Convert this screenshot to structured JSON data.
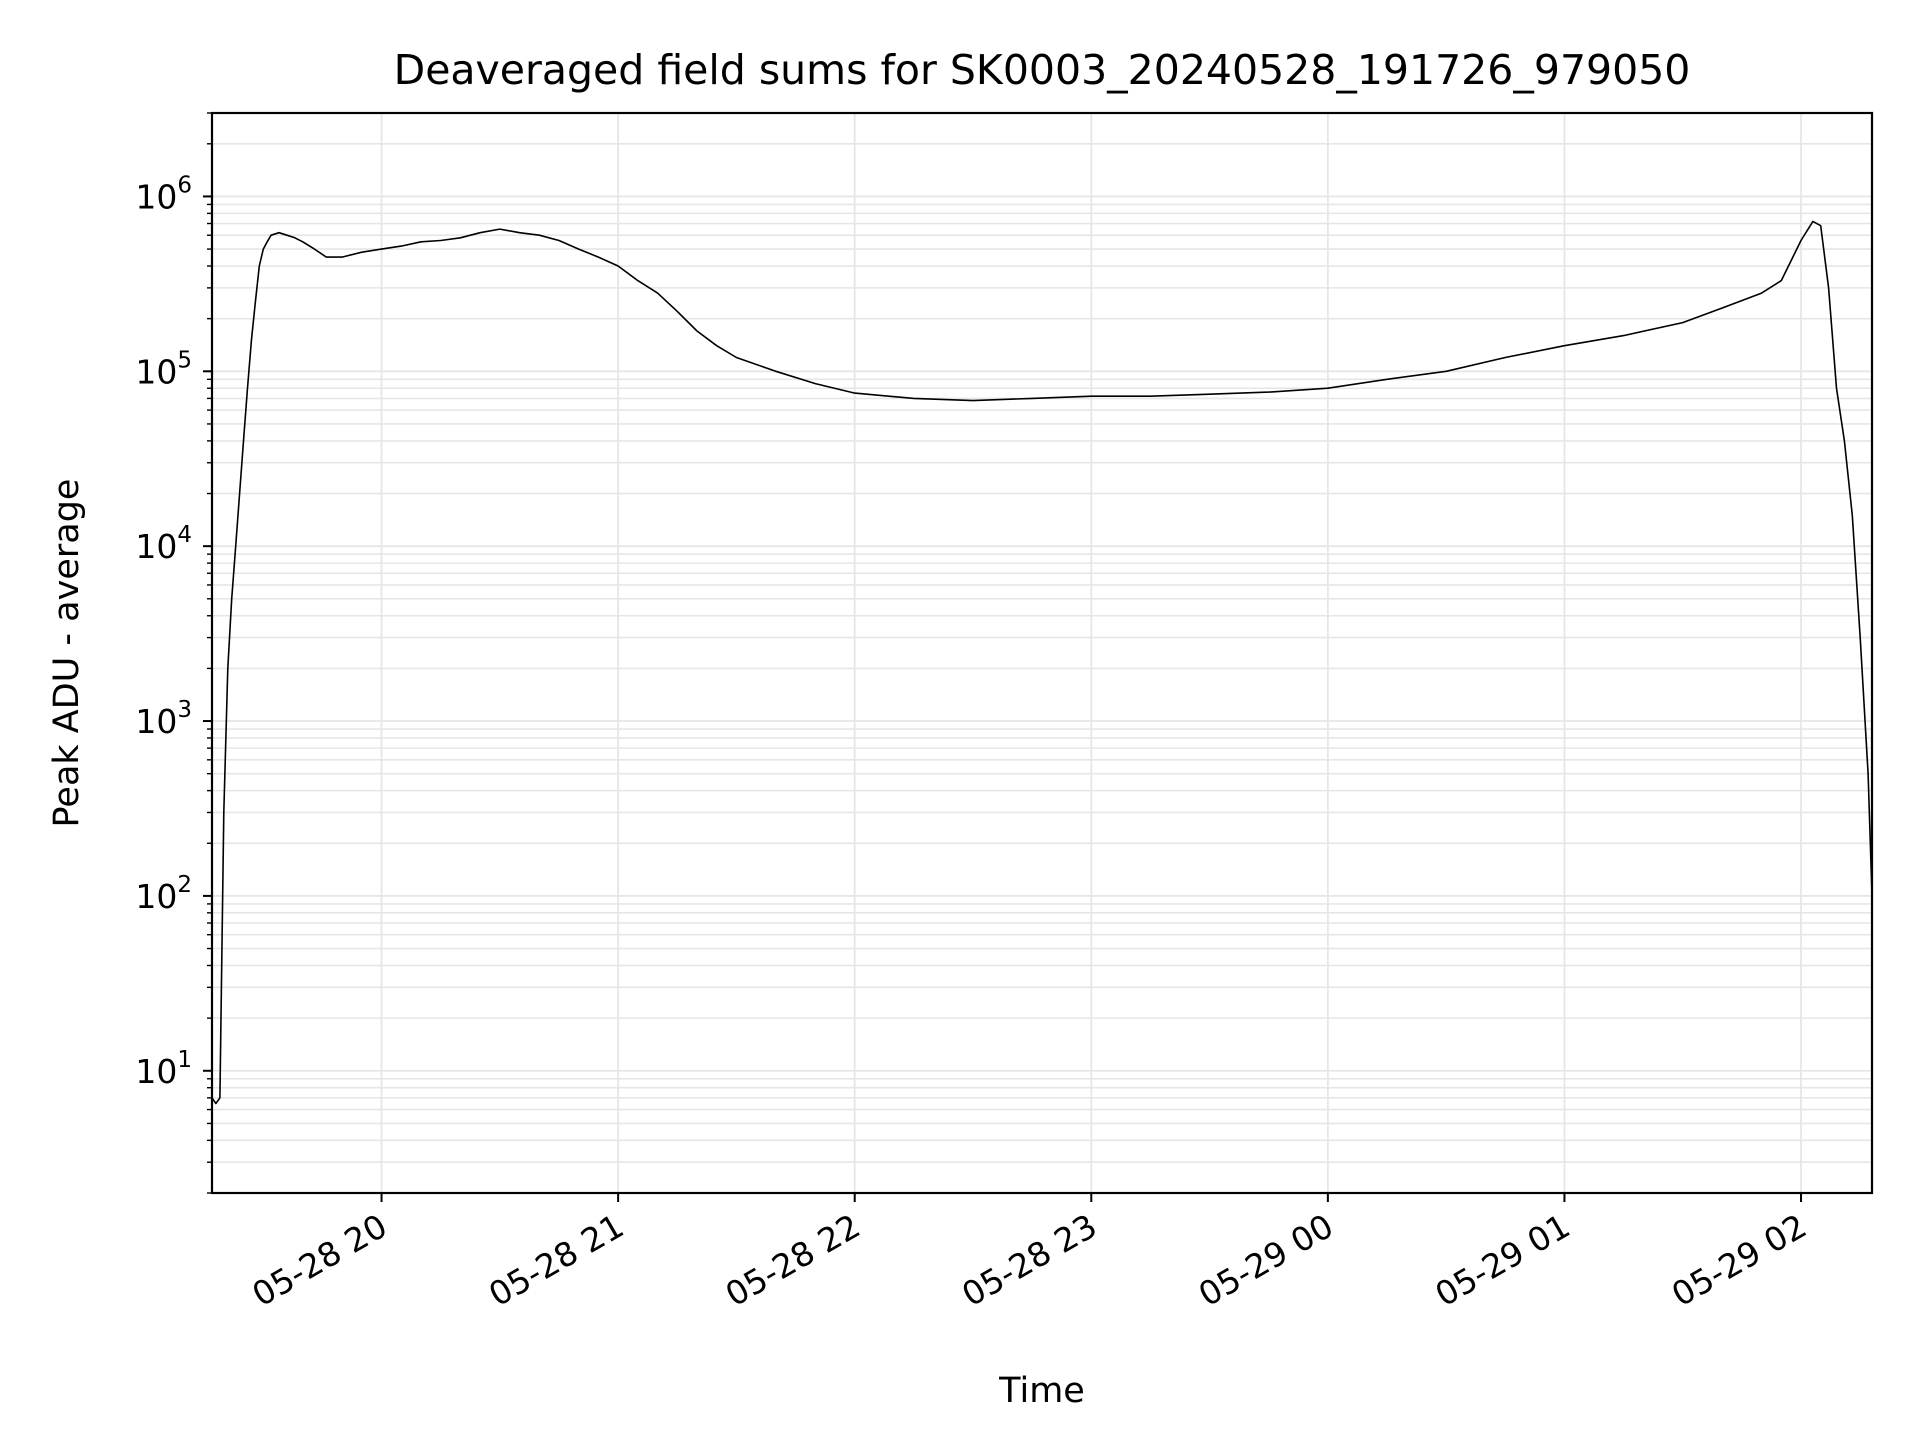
{
  "chart_data": {
    "type": "line",
    "title": "Deaveraged field sums for SK0003_20240528_191726_979050",
    "xlabel": "Time",
    "ylabel": "Peak ADU - average",
    "yscale": "log",
    "ylim": [
      2,
      3000000
    ],
    "xlim": [
      "2024-05-28 19:17",
      "2024-05-29 02:18"
    ],
    "x_ticks": [
      {
        "label": "05-28 20",
        "value": "2024-05-28 20:00"
      },
      {
        "label": "05-28 21",
        "value": "2024-05-28 21:00"
      },
      {
        "label": "05-28 22",
        "value": "2024-05-28 22:00"
      },
      {
        "label": "05-28 23",
        "value": "2024-05-28 23:00"
      },
      {
        "label": "05-29 00",
        "value": "2024-05-29 00:00"
      },
      {
        "label": "05-29 01",
        "value": "2024-05-29 01:00"
      },
      {
        "label": "05-29 02",
        "value": "2024-05-29 02:00"
      }
    ],
    "y_ticks": [
      {
        "base": "10",
        "exp": "1",
        "value": 10
      },
      {
        "base": "10",
        "exp": "2",
        "value": 100
      },
      {
        "base": "10",
        "exp": "3",
        "value": 1000
      },
      {
        "base": "10",
        "exp": "4",
        "value": 10000
      },
      {
        "base": "10",
        "exp": "5",
        "value": 100000
      },
      {
        "base": "10",
        "exp": "6",
        "value": 1000000
      }
    ],
    "grid": true,
    "grid_minor": true,
    "line_color": "#000000",
    "grid_color": "#e6e6e6",
    "series": [
      {
        "name": "",
        "x": [
          "2024-05-28 19:17",
          "2024-05-28 19:18",
          "2024-05-28 19:19",
          "2024-05-28 19:20",
          "2024-05-28 19:21",
          "2024-05-28 19:22",
          "2024-05-28 19:23",
          "2024-05-28 19:24",
          "2024-05-28 19:25",
          "2024-05-28 19:26",
          "2024-05-28 19:27",
          "2024-05-28 19:28",
          "2024-05-28 19:29",
          "2024-05-28 19:30",
          "2024-05-28 19:31",
          "2024-05-28 19:32",
          "2024-05-28 19:34",
          "2024-05-28 19:36",
          "2024-05-28 19:38",
          "2024-05-28 19:40",
          "2024-05-28 19:43",
          "2024-05-28 19:46",
          "2024-05-28 19:50",
          "2024-05-28 19:55",
          "2024-05-28 20:00",
          "2024-05-28 20:05",
          "2024-05-28 20:10",
          "2024-05-28 20:15",
          "2024-05-28 20:20",
          "2024-05-28 20:25",
          "2024-05-28 20:30",
          "2024-05-28 20:35",
          "2024-05-28 20:40",
          "2024-05-28 20:45",
          "2024-05-28 20:50",
          "2024-05-28 20:55",
          "2024-05-28 21:00",
          "2024-05-28 21:05",
          "2024-05-28 21:10",
          "2024-05-28 21:15",
          "2024-05-28 21:20",
          "2024-05-28 21:25",
          "2024-05-28 21:30",
          "2024-05-28 21:40",
          "2024-05-28 21:50",
          "2024-05-28 22:00",
          "2024-05-28 22:15",
          "2024-05-28 22:30",
          "2024-05-28 22:45",
          "2024-05-28 23:00",
          "2024-05-28 23:15",
          "2024-05-28 23:30",
          "2024-05-28 23:45",
          "2024-05-29 00:00",
          "2024-05-29 00:15",
          "2024-05-29 00:30",
          "2024-05-29 00:45",
          "2024-05-29 01:00",
          "2024-05-29 01:15",
          "2024-05-29 01:30",
          "2024-05-29 01:40",
          "2024-05-29 01:50",
          "2024-05-29 01:55",
          "2024-05-29 02:00",
          "2024-05-29 02:03",
          "2024-05-29 02:05",
          "2024-05-29 02:07",
          "2024-05-29 02:09",
          "2024-05-29 02:11",
          "2024-05-29 02:13",
          "2024-05-29 02:15",
          "2024-05-29 02:17",
          "2024-05-29 02:18"
        ],
        "values": [
          7,
          6.5,
          7,
          300,
          2000,
          5000,
          10000,
          20000,
          40000,
          80000,
          150000,
          250000,
          400000,
          500000,
          550000,
          600000,
          620000,
          600000,
          580000,
          550000,
          500000,
          450000,
          450000,
          480000,
          500000,
          520000,
          550000,
          560000,
          580000,
          620000,
          650000,
          620000,
          600000,
          560000,
          500000,
          450000,
          400000,
          330000,
          280000,
          220000,
          170000,
          140000,
          120000,
          100000,
          85000,
          75000,
          70000,
          68000,
          70000,
          72000,
          72000,
          74000,
          76000,
          80000,
          90000,
          100000,
          120000,
          140000,
          160000,
          190000,
          230000,
          280000,
          330000,
          560000,
          720000,
          680000,
          300000,
          80000,
          40000,
          15000,
          3000,
          500,
          100
        ]
      }
    ]
  }
}
